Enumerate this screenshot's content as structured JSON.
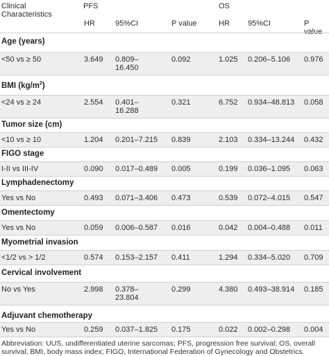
{
  "header": {
    "clinical": "Clinical\nCharacteristics",
    "pfs": "PFS",
    "os": "OS",
    "hr": "HR",
    "ci": "95%CI",
    "pval": "P value"
  },
  "sections": [
    {
      "title": "Age (years)",
      "row": {
        "label": "<50 vs ≥ 50",
        "pfs_hr": "3.649",
        "pfs_ci": "0.809–\n16.450",
        "pfs_p": "0.092",
        "os_hr": "1.025",
        "os_ci": "0.206–5.106",
        "os_p": "0.976"
      }
    },
    {
      "title": "BMI (kg/m",
      "title_sup": "2",
      "title_end": ")",
      "row": {
        "label": "<24 vs ≥ 24",
        "pfs_hr": "2.554",
        "pfs_ci": "0.401–\n16.288",
        "pfs_p": "0.321",
        "os_hr": "6.752",
        "os_ci": "0.934–48.813",
        "os_p": "0.058"
      }
    },
    {
      "title": "Tumor size (cm)",
      "row": {
        "label": "<10 vs ≥ 10",
        "pfs_hr": "1.204",
        "pfs_ci": "0.201–7.215",
        "pfs_p": "0.839",
        "os_hr": "2.103",
        "os_ci": "0.334–13.244",
        "os_p": "0.432"
      }
    },
    {
      "title": "FIGO stage",
      "row": {
        "label": "I-II vs III-IV",
        "pfs_hr": "0.090",
        "pfs_ci": "0.017–0.489",
        "pfs_p": "0.005",
        "os_hr": "0.199",
        "os_ci": "0.036–1.095",
        "os_p": "0.063"
      }
    },
    {
      "title": "Lymphadenectomy",
      "row": {
        "label": "Yes vs No",
        "pfs_hr": "0.493",
        "pfs_ci": "0.071–3.406",
        "pfs_p": "0.473",
        "os_hr": "0.539",
        "os_ci": "0.072–4.015",
        "os_p": "0.547"
      }
    },
    {
      "title": "Omentectomy",
      "row": {
        "label": "Yes vs No",
        "pfs_hr": "0.059",
        "pfs_ci": "0.006–0.587",
        "pfs_p": "0.016",
        "os_hr": "0.042",
        "os_ci": "0.004–0.488",
        "os_p": "0.011"
      }
    },
    {
      "title": "Myometrial invasion",
      "row": {
        "label": "<1/2 vs > 1/2",
        "pfs_hr": "0.574",
        "pfs_ci": "0.153–2.157",
        "pfs_p": "0.411",
        "os_hr": "1.294",
        "os_ci": "0.334–5.020",
        "os_p": "0.709"
      }
    },
    {
      "title": "Cervical involvement",
      "row": {
        "label": "No vs Yes",
        "pfs_hr": "2.998",
        "pfs_ci": "0.378–\n23.804",
        "pfs_p": "0.299",
        "os_hr": "4.380",
        "os_ci": "0.493–38.914",
        "os_p": "0.185"
      }
    },
    {
      "title": "Adjuvant chemotherapy",
      "row": {
        "label": "Yes vs No",
        "pfs_hr": "0.259",
        "pfs_ci": "0.037–1.825",
        "pfs_p": "0.175",
        "os_hr": "0.022",
        "os_ci": "0.002–0.298",
        "os_p": "0.004"
      }
    }
  ],
  "footnote": "Abbreviation: UUS, undifferentiated uterine sarcomas; PFS, progression free survival; OS, overall survival; BMI, body mass index; FIGO, International Federation of Gynecology and Obstetrics."
}
